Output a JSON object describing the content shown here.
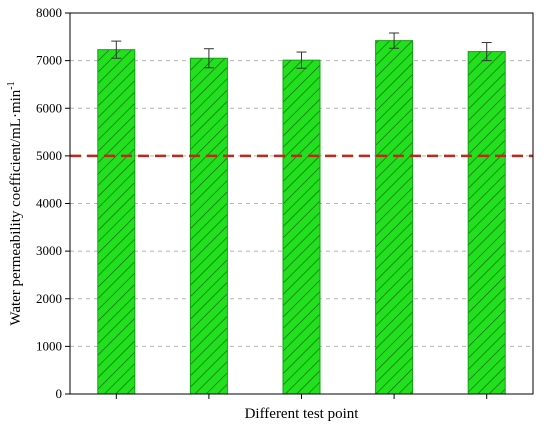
{
  "chart_data": {
    "type": "bar",
    "title": "",
    "xlabel": "Different test point",
    "ylabel": "Water permeability coefficient/mL·min",
    "ylabel_superscript": "-1",
    "categories": [
      "",
      "",
      "",
      "",
      ""
    ],
    "values": [
      7230,
      7050,
      7010,
      7420,
      7190
    ],
    "errors": [
      180,
      200,
      170,
      160,
      190
    ],
    "ylim": [
      0,
      8000
    ],
    "yticks": [
      0,
      1000,
      2000,
      3000,
      4000,
      5000,
      6000,
      7000,
      8000
    ],
    "reference_line": 5000,
    "grid": true,
    "bar_fill": "#22e01e",
    "bar_hatch": "#145f14",
    "reference_color": "#c0281c",
    "grid_color": "#b4b4b4"
  }
}
